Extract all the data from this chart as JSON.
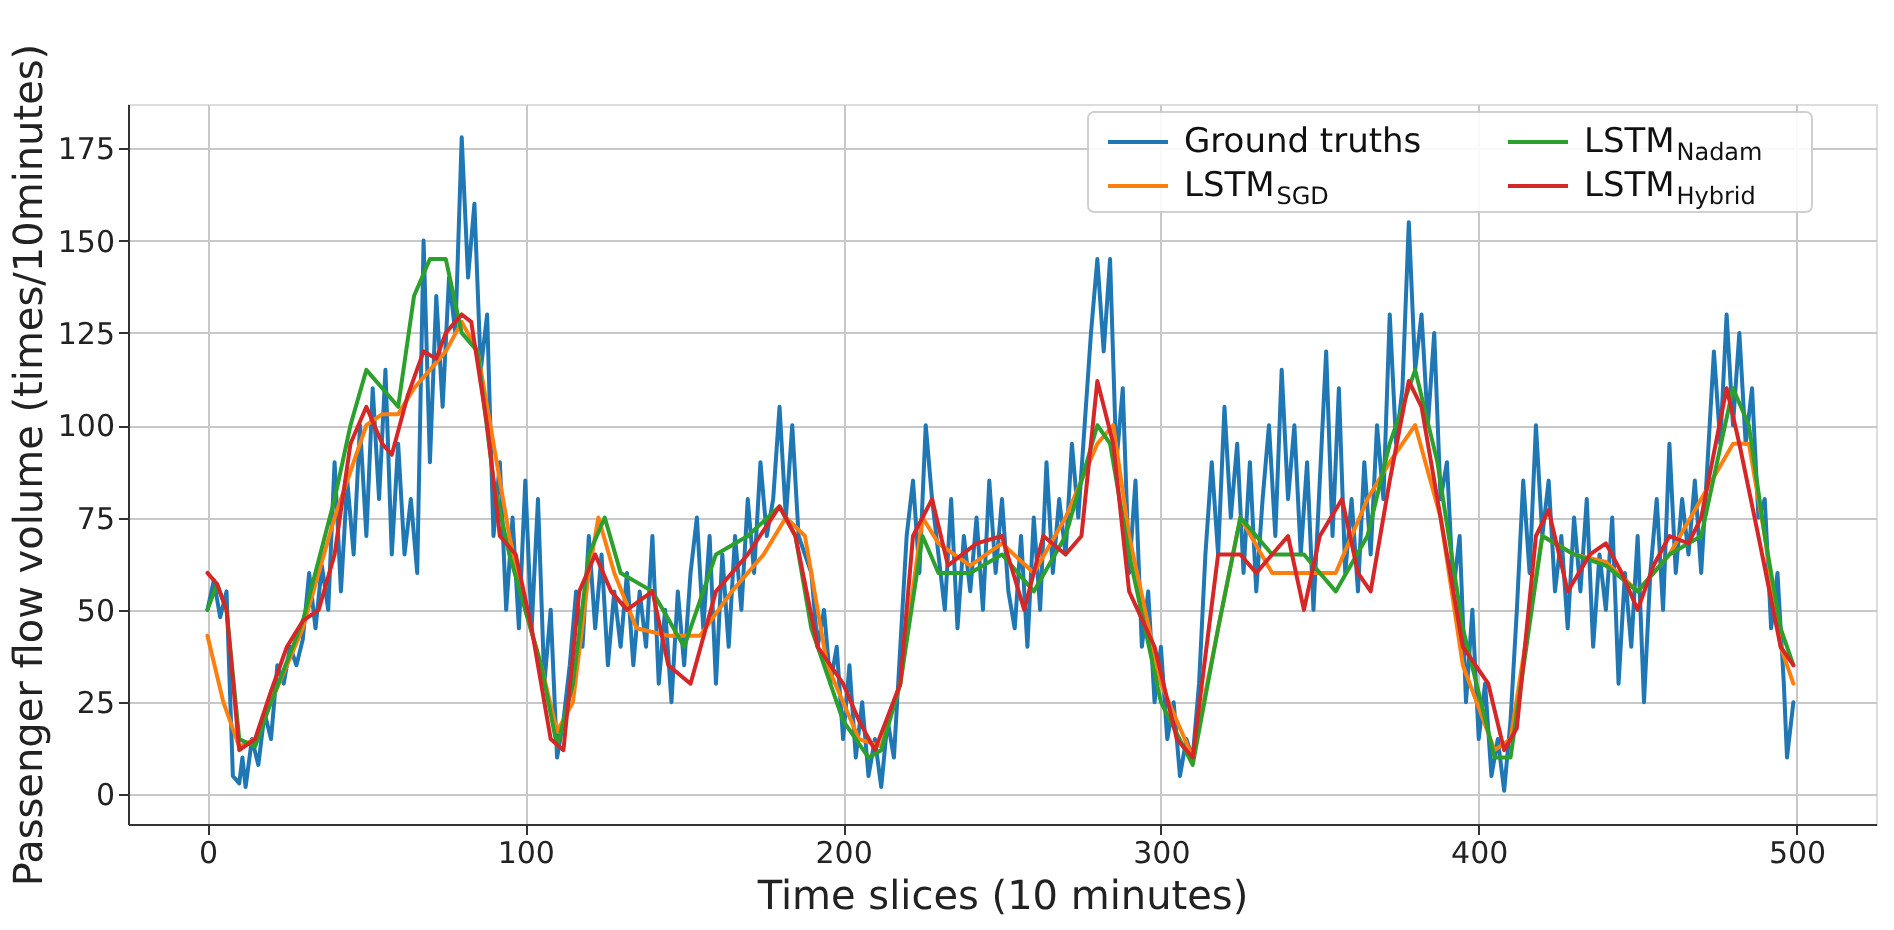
{
  "chart_data": {
    "type": "line",
    "xlabel": "Time slices (10 minutes)",
    "ylabel": "Passenger flow volume (times/10minutes)",
    "xlim": [
      -25,
      525
    ],
    "ylim": [
      -8,
      187
    ],
    "xticks": [
      0,
      100,
      200,
      300,
      400,
      500
    ],
    "yticks": [
      0,
      25,
      50,
      75,
      100,
      125,
      150,
      175
    ],
    "grid": true,
    "legend": "top right",
    "series": [
      {
        "name": "Ground truths",
        "color": "#1f77b4",
        "x": [
          0,
          2,
          4,
          6,
          8,
          10,
          11,
          12,
          14,
          16,
          18,
          20,
          22,
          24,
          26,
          28,
          30,
          32,
          34,
          36,
          38,
          40,
          42,
          44,
          46,
          48,
          50,
          52,
          54,
          56,
          58,
          60,
          62,
          64,
          66,
          68,
          70,
          72,
          74,
          76,
          78,
          80,
          82,
          84,
          86,
          88,
          90,
          92,
          94,
          96,
          98,
          100,
          102,
          104,
          106,
          108,
          110,
          112,
          114,
          116,
          118,
          120,
          122,
          124,
          126,
          128,
          130,
          132,
          134,
          136,
          138,
          140,
          142,
          144,
          146,
          148,
          150,
          152,
          154,
          156,
          158,
          160,
          162,
          164,
          166,
          168,
          170,
          172,
          174,
          176,
          178,
          180,
          182,
          184,
          186,
          190,
          192,
          194,
          196,
          198,
          200,
          202,
          204,
          206,
          208,
          210,
          212,
          214,
          216,
          218,
          220,
          222,
          224,
          226,
          228,
          230,
          232,
          234,
          236,
          238,
          240,
          242,
          244,
          246,
          248,
          250,
          252,
          254,
          256,
          258,
          260,
          262,
          264,
          266,
          268,
          270,
          272,
          274,
          276,
          278,
          280,
          282,
          284,
          286,
          288,
          290,
          292,
          294,
          296,
          298,
          300,
          302,
          304,
          306,
          308,
          310,
          312,
          314,
          316,
          318,
          320,
          322,
          324,
          326,
          328,
          330,
          332,
          334,
          336,
          338,
          340,
          342,
          344,
          346,
          348,
          350,
          352,
          354,
          356,
          358,
          360,
          362,
          364,
          366,
          368,
          370,
          372,
          374,
          376,
          378,
          380,
          382,
          384,
          386,
          388,
          390,
          392,
          394,
          396,
          398,
          400,
          402,
          404,
          406,
          408,
          410,
          412,
          414,
          416,
          418,
          420,
          422,
          424,
          426,
          428,
          430,
          432,
          434,
          436,
          438,
          440,
          442,
          444,
          446,
          448,
          450,
          452,
          454,
          456,
          458,
          460,
          462,
          464,
          466,
          468,
          470,
          472,
          474,
          476,
          478,
          480,
          482,
          484,
          486,
          488,
          490,
          492,
          494,
          496,
          497,
          499
        ],
        "values": [
          50,
          58,
          48,
          55,
          5,
          3,
          10,
          2,
          15,
          8,
          22,
          15,
          35,
          30,
          40,
          35,
          42,
          60,
          45,
          62,
          50,
          90,
          55,
          85,
          65,
          100,
          70,
          110,
          80,
          115,
          65,
          95,
          65,
          80,
          60,
          150,
          90,
          135,
          105,
          140,
          125,
          178,
          140,
          160,
          115,
          130,
          70,
          90,
          50,
          75,
          45,
          85,
          45,
          80,
          30,
          50,
          10,
          20,
          35,
          55,
          40,
          70,
          45,
          65,
          35,
          55,
          40,
          60,
          35,
          55,
          40,
          70,
          30,
          50,
          25,
          55,
          35,
          60,
          75,
          45,
          70,
          30,
          65,
          40,
          70,
          50,
          80,
          60,
          90,
          70,
          80,
          105,
          75,
          100,
          70,
          60,
          40,
          50,
          30,
          40,
          15,
          35,
          10,
          25,
          5,
          15,
          2,
          20,
          10,
          40,
          70,
          85,
          60,
          100,
          80,
          65,
          50,
          80,
          45,
          70,
          55,
          75,
          50,
          85,
          60,
          80,
          55,
          45,
          70,
          40,
          75,
          50,
          90,
          60,
          80,
          65,
          95,
          75,
          100,
          125,
          145,
          120,
          145,
          90,
          110,
          60,
          85,
          40,
          55,
          25,
          40,
          15,
          25,
          5,
          15,
          10,
          30,
          65,
          90,
          65,
          105,
          75,
          95,
          60,
          90,
          55,
          80,
          100,
          70,
          115,
          80,
          100,
          65,
          90,
          50,
          85,
          120,
          70,
          110,
          60,
          80,
          55,
          90,
          65,
          100,
          80,
          130,
          95,
          110,
          155,
          115,
          130,
          100,
          125,
          80,
          90,
          55,
          70,
          25,
          50,
          15,
          30,
          5,
          15,
          1,
          20,
          50,
          85,
          60,
          100,
          70,
          85,
          55,
          70,
          45,
          75,
          55,
          80,
          40,
          65,
          50,
          75,
          30,
          60,
          40,
          70,
          25,
          60,
          80,
          50,
          95,
          60,
          80,
          65,
          85,
          60,
          90,
          120,
          95,
          130,
          100,
          125,
          95,
          110,
          75,
          80,
          45,
          60,
          30,
          10,
          25
        ]
      },
      {
        "name": "LSTM$_{SGD}$",
        "color": "#ff7f0e",
        "x": [
          0,
          5,
          10,
          15,
          20,
          30,
          40,
          50,
          55,
          60,
          65,
          70,
          75,
          80,
          85,
          90,
          95,
          100,
          105,
          110,
          115,
          120,
          123,
          128,
          135,
          145,
          155,
          165,
          175,
          182,
          188,
          195,
          205,
          212,
          218,
          225,
          230,
          240,
          250,
          260,
          270,
          280,
          285,
          290,
          300,
          310,
          318,
          325,
          335,
          345,
          355,
          365,
          372,
          380,
          388,
          395,
          405,
          410,
          420,
          430,
          440,
          450,
          460,
          470,
          480,
          485,
          490,
          495,
          499
        ],
        "values": [
          43,
          25,
          13,
          15,
          25,
          45,
          75,
          100,
          103,
          103,
          110,
          115,
          120,
          128,
          120,
          95,
          70,
          50,
          35,
          17,
          25,
          60,
          75,
          60,
          45,
          43,
          43,
          55,
          65,
          75,
          70,
          35,
          15,
          13,
          30,
          75,
          68,
          62,
          68,
          60,
          75,
          95,
          100,
          70,
          30,
          10,
          45,
          75,
          60,
          60,
          60,
          80,
          90,
          100,
          75,
          35,
          12,
          15,
          70,
          65,
          63,
          55,
          65,
          80,
          95,
          95,
          70,
          40,
          30
        ]
      },
      {
        "name": "LSTM$_{Nadam}$",
        "color": "#2ca02c",
        "x": [
          0,
          3,
          6,
          10,
          15,
          20,
          30,
          40,
          45,
          50,
          55,
          60,
          65,
          70,
          75,
          80,
          85,
          90,
          95,
          100,
          105,
          110,
          115,
          120,
          125,
          130,
          140,
          150,
          160,
          170,
          180,
          185,
          190,
          200,
          208,
          212,
          218,
          225,
          230,
          240,
          250,
          260,
          270,
          280,
          284,
          290,
          300,
          310,
          318,
          325,
          335,
          345,
          355,
          365,
          372,
          380,
          387,
          395,
          405,
          410,
          420,
          430,
          440,
          450,
          460,
          470,
          480,
          485,
          490,
          495,
          499
        ],
        "values": [
          50,
          57,
          50,
          15,
          13,
          25,
          47,
          80,
          100,
          115,
          110,
          105,
          135,
          145,
          145,
          125,
          120,
          85,
          65,
          50,
          35,
          13,
          30,
          65,
          75,
          60,
          55,
          40,
          65,
          70,
          78,
          70,
          45,
          20,
          10,
          12,
          30,
          70,
          60,
          60,
          65,
          55,
          70,
          100,
          95,
          65,
          25,
          8,
          45,
          75,
          65,
          65,
          55,
          70,
          95,
          115,
          90,
          45,
          10,
          10,
          70,
          65,
          62,
          55,
          65,
          70,
          110,
          100,
          70,
          45,
          35
        ]
      },
      {
        "name": "LSTM$_{Hybrid}$",
        "color": "#d62728",
        "x": [
          0,
          3,
          6,
          10,
          15,
          20,
          25,
          30,
          35,
          40,
          45,
          50,
          55,
          58,
          63,
          68,
          72,
          75,
          80,
          83,
          88,
          92,
          97,
          102,
          108,
          112,
          117,
          122,
          127,
          132,
          140,
          145,
          152,
          160,
          170,
          180,
          185,
          192,
          200,
          205,
          210,
          218,
          222,
          228,
          233,
          242,
          250,
          257,
          263,
          270,
          275,
          280,
          285,
          290,
          298,
          305,
          310,
          318,
          325,
          330,
          335,
          340,
          345,
          350,
          357,
          362,
          366,
          372,
          378,
          382,
          388,
          395,
          403,
          408,
          412,
          418,
          422,
          428,
          435,
          440,
          445,
          450,
          455,
          460,
          466,
          470,
          478,
          482,
          488,
          495,
          499
        ],
        "values": [
          60,
          57,
          50,
          12,
          15,
          28,
          40,
          47,
          50,
          65,
          95,
          105,
          95,
          92,
          108,
          120,
          118,
          125,
          130,
          128,
          100,
          70,
          65,
          45,
          15,
          12,
          55,
          65,
          55,
          50,
          55,
          35,
          30,
          55,
          65,
          78,
          70,
          40,
          30,
          20,
          12,
          30,
          70,
          80,
          62,
          68,
          70,
          50,
          70,
          65,
          70,
          112,
          95,
          55,
          40,
          15,
          10,
          65,
          65,
          60,
          65,
          70,
          50,
          70,
          80,
          60,
          55,
          85,
          112,
          105,
          75,
          40,
          30,
          12,
          18,
          70,
          77,
          55,
          65,
          68,
          60,
          50,
          62,
          70,
          68,
          75,
          110,
          95,
          70,
          40,
          35
        ]
      }
    ]
  }
}
